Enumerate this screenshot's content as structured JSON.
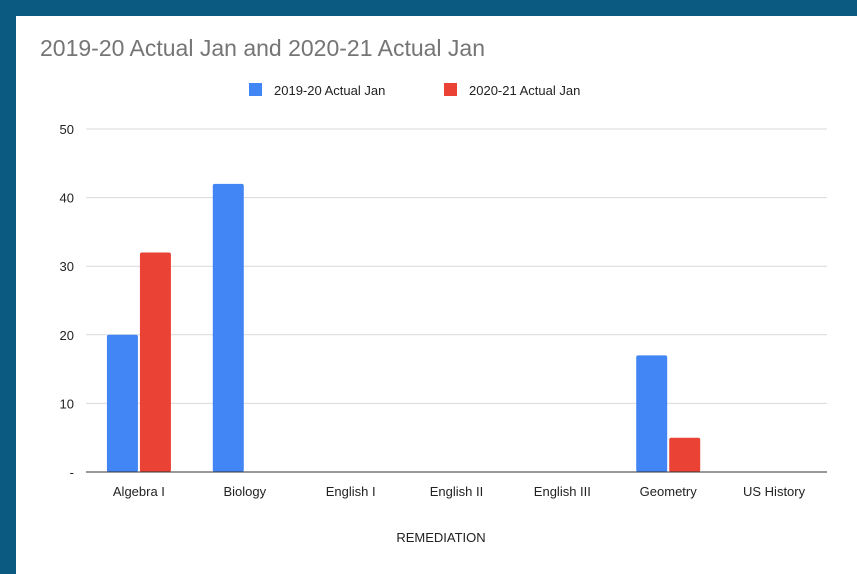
{
  "chart_data": {
    "type": "bar",
    "title": "2019-20 Actual Jan and  2020-21 Actual Jan",
    "xlabel": "REMEDIATION",
    "ylabel": "",
    "categories": [
      "Algebra I",
      "Biology",
      "English I",
      "English II",
      "English III",
      "Geometry",
      "US History"
    ],
    "series": [
      {
        "name": "2019-20 Actual Jan",
        "color": "#4285f4",
        "values": [
          20,
          42,
          0,
          0,
          0,
          17,
          0
        ]
      },
      {
        "name": "2020-21 Actual Jan",
        "color": "#ea4335",
        "values": [
          32,
          0,
          0,
          0,
          0,
          5,
          0
        ]
      }
    ],
    "ylim": [
      0,
      50
    ],
    "yticks": [
      0,
      10,
      20,
      30,
      40,
      50
    ],
    "ytick_labels": [
      "-",
      "10",
      "20",
      "30",
      "40",
      "50"
    ],
    "grid": true,
    "legend_position": "top-center"
  },
  "colors": {
    "page_border": "#0a5a82",
    "background": "#ffffff"
  }
}
